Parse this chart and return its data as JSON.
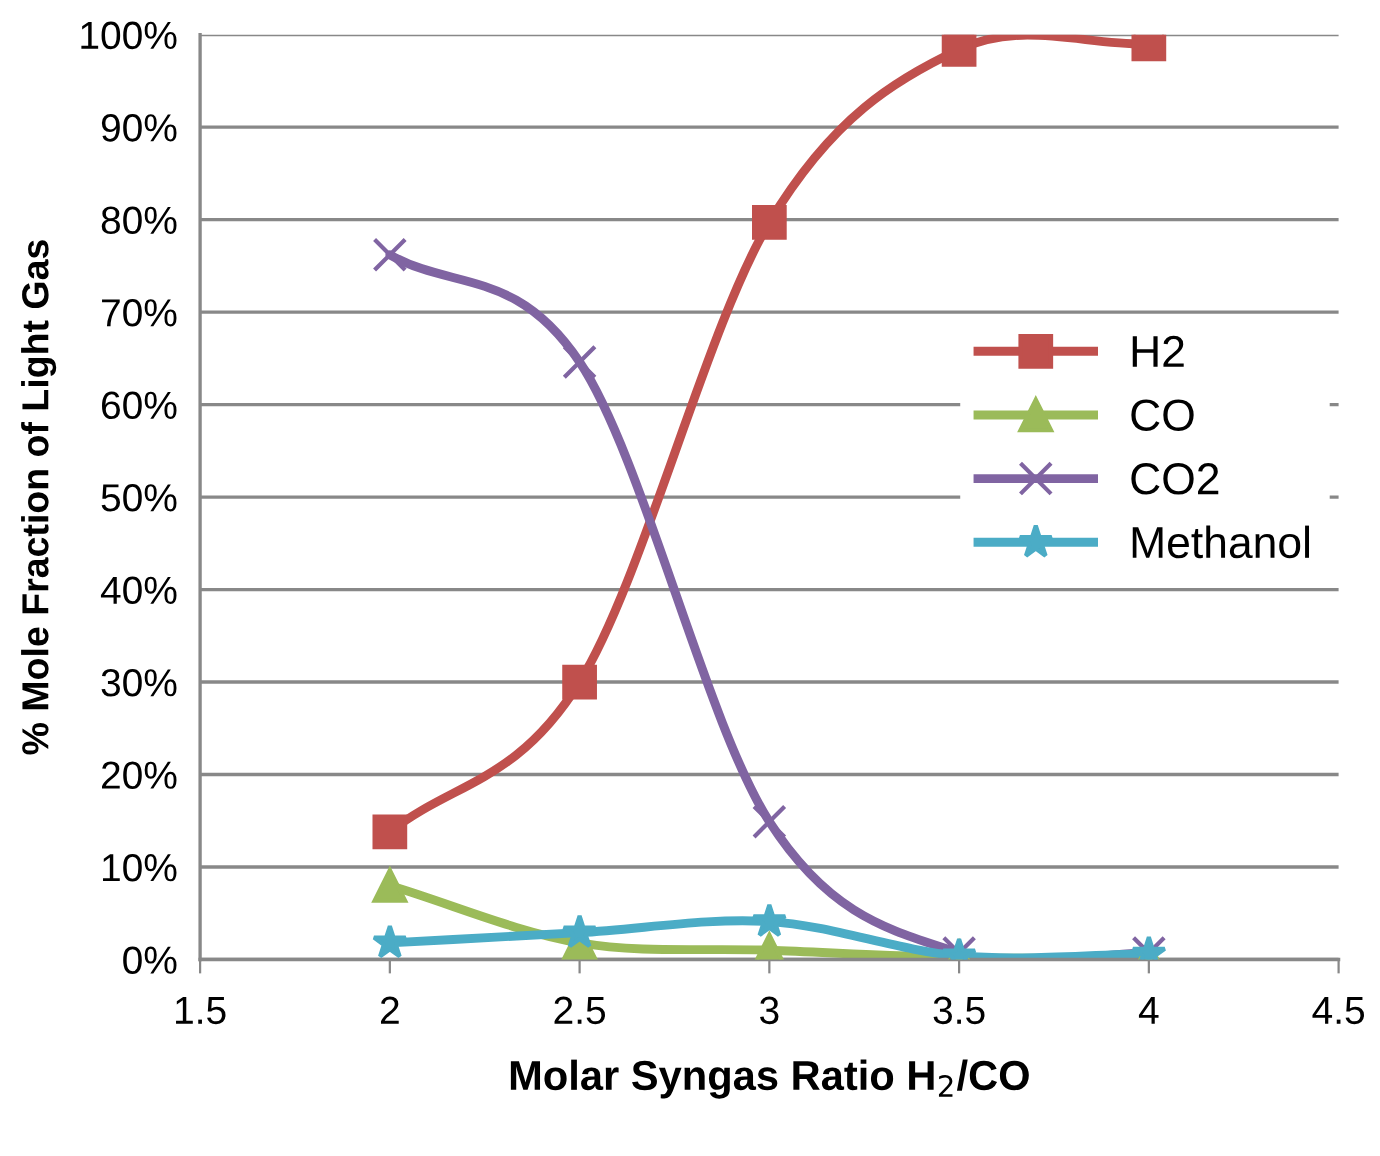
{
  "chart_data": {
    "type": "line",
    "xlabel": "Molar Syngas Ratio H$_{2}$/CO",
    "ylabel": "% Mole Fraction of Light Gas",
    "x": [
      2,
      2.5,
      3,
      3.5,
      4
    ],
    "series": [
      {
        "name": "H2",
        "color": "#c0504d",
        "marker": "square",
        "values": [
          13.8,
          30,
          79.7,
          98.4,
          99.0
        ]
      },
      {
        "name": "CO",
        "color": "#9bbb59",
        "marker": "triangle",
        "values": [
          8,
          1.8,
          1.0,
          0.2,
          0.2
        ]
      },
      {
        "name": "CO2",
        "color": "#8064a2",
        "marker": "cross",
        "values": [
          76.2,
          64.6,
          14.9,
          0.7,
          0.7
        ]
      },
      {
        "name": "Methanol",
        "color": "#4bacc6",
        "marker": "star",
        "values": [
          1.8,
          2.9,
          4.1,
          0.4,
          0.6
        ]
      }
    ],
    "xlim": [
      1.5,
      4.5
    ],
    "xticks": [
      1.5,
      2,
      2.5,
      3,
      3.5,
      4,
      4.5
    ],
    "ylim": [
      0,
      100
    ],
    "yticks": [
      {
        "value": 0,
        "label": "0%"
      },
      {
        "value": 10,
        "label": "10%"
      },
      {
        "value": 20,
        "label": "20%"
      },
      {
        "value": 30,
        "label": "30%"
      },
      {
        "value": 40,
        "label": "40%"
      },
      {
        "value": 50,
        "label": "50%"
      },
      {
        "value": 60,
        "label": "60%"
      },
      {
        "value": 70,
        "label": "70%"
      },
      {
        "value": 80,
        "label": "80%"
      },
      {
        "value": 90,
        "label": "90%"
      },
      {
        "value": 100,
        "label": "100%"
      }
    ],
    "grid": "y",
    "legend": "right",
    "line_style": "solid"
  }
}
